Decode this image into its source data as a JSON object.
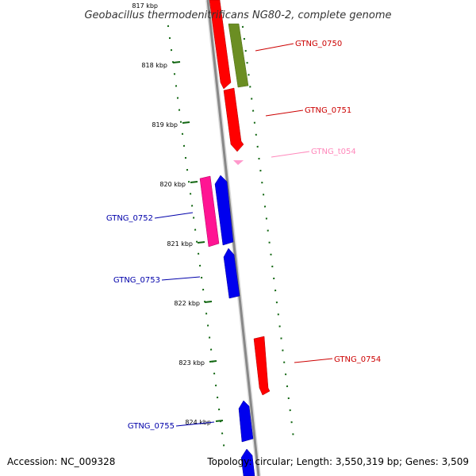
{
  "title": "Geobacillus thermodenitrificans NG80-2, complete genome",
  "footer": {
    "accession": "Accession: NC_009328",
    "topology": "Topology: circular; Length: 3,550,319 bp; Genes: 3,509"
  },
  "kbp_labels": [
    "817 kbp",
    "818 kbp",
    "819 kbp",
    "820 kbp",
    "821 kbp",
    "822 kbp",
    "823 kbp",
    "824 kbp"
  ],
  "genes": [
    {
      "name": "GTNG_0750",
      "color": "#cc0000"
    },
    {
      "name": "GTNG_0751",
      "color": "#cc0000"
    },
    {
      "name": "GTNG_t054",
      "color": "#ff88bb"
    },
    {
      "name": "GTNG_0752",
      "color": "#0000aa"
    },
    {
      "name": "GTNG_0753",
      "color": "#0000aa"
    },
    {
      "name": "GTNG_0754",
      "color": "#cc0000"
    },
    {
      "name": "GTNG_0755",
      "color": "#0000aa"
    }
  ],
  "colors": {
    "backbone": "#888888",
    "ticks": "#116611",
    "red_gene": "#ff0000",
    "blue_gene": "#0000ee",
    "green_gene": "#6b8e23",
    "pink_gene": "#ff1493",
    "trna": "#ff99cc"
  }
}
